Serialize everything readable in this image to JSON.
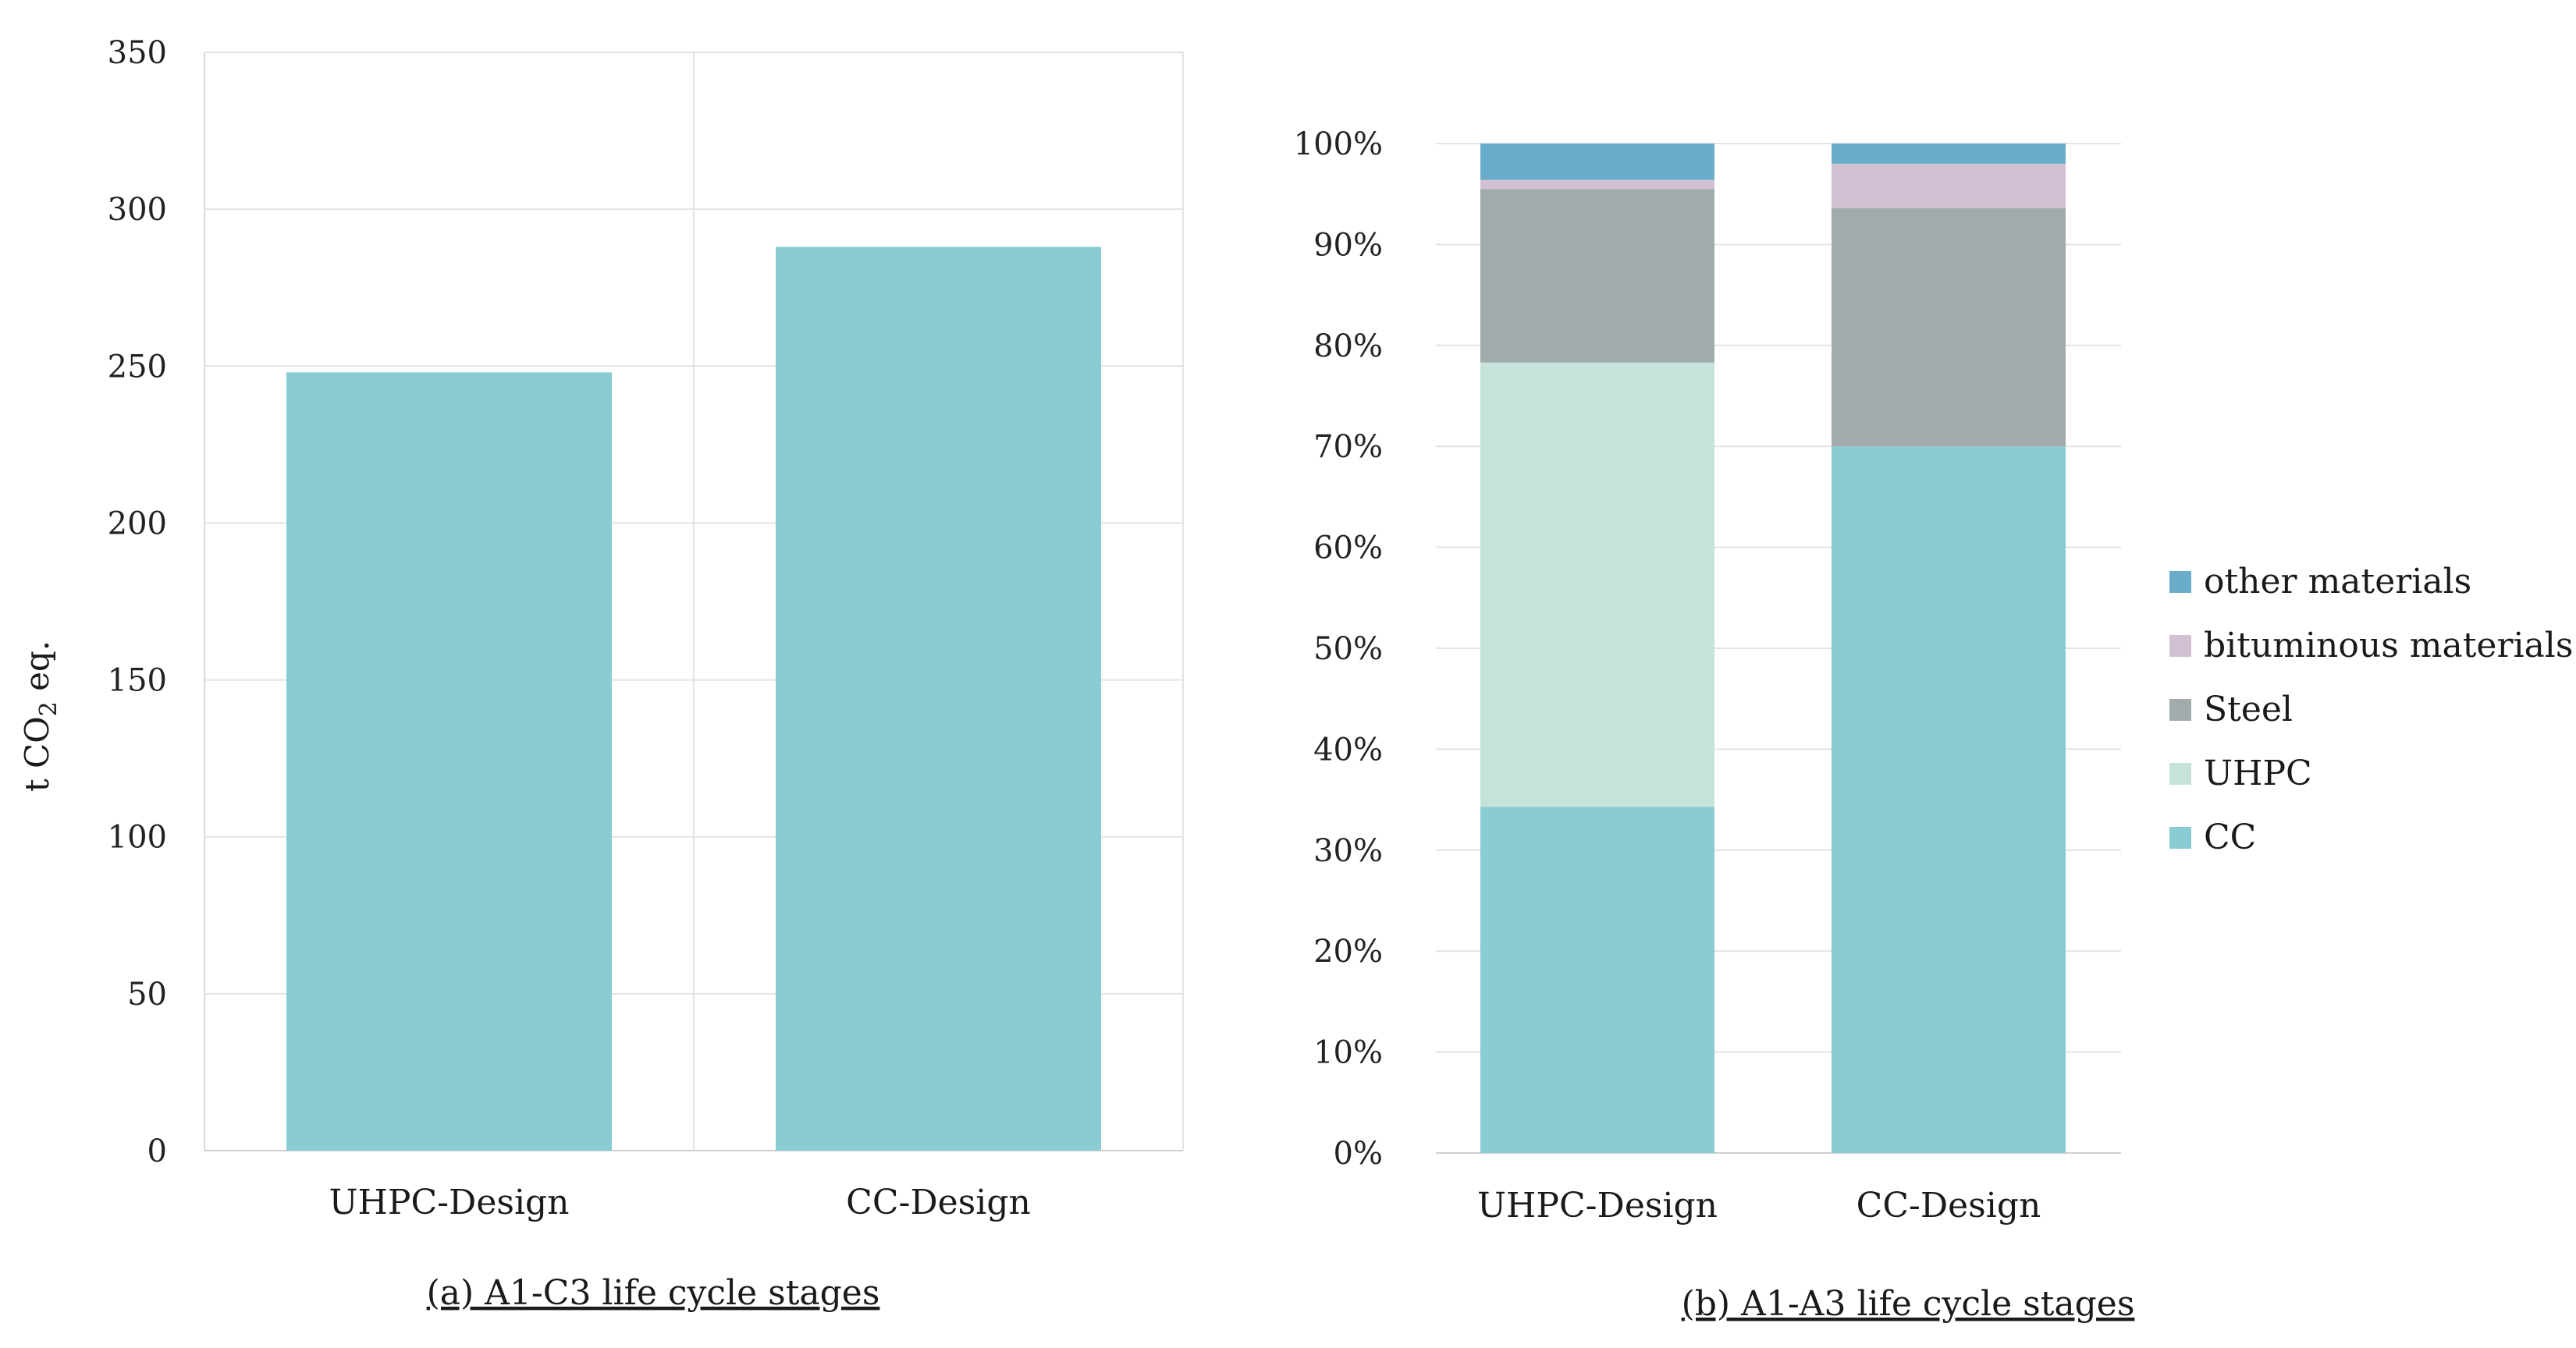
{
  "chart_data": [
    {
      "type": "bar",
      "caption": "(a) A1-C3 life cycle stages",
      "ylabel": {
        "prefix": "t CO",
        "subscript": "2",
        "suffix": " eq."
      },
      "categories": [
        "UHPC-Design",
        "CC-Design"
      ],
      "values": [
        248,
        288
      ],
      "ylim": [
        0,
        350
      ],
      "yticks": [
        "0",
        "50",
        "100",
        "150",
        "200",
        "250",
        "300",
        "350"
      ],
      "ytick_values": [
        0,
        50,
        100,
        150,
        200,
        250,
        300,
        350
      ],
      "grid": true,
      "color": "#8ACCD3"
    },
    {
      "type": "bar",
      "stacked": true,
      "caption": "(b) A1-A3 life cycle stages",
      "categories": [
        "UHPC-Design",
        "CC-Design"
      ],
      "ylim": [
        0,
        100
      ],
      "yticks": [
        "0%",
        "10%",
        "20%",
        "30%",
        "40%",
        "50%",
        "60%",
        "70%",
        "80%",
        "90%",
        "100%"
      ],
      "ytick_values": [
        0,
        10,
        20,
        30,
        40,
        50,
        60,
        70,
        80,
        90,
        100
      ],
      "grid": true,
      "legend_position": "right",
      "series": [
        {
          "name": "CC",
          "color": "#8ACCD3",
          "values": [
            34.3,
            70.0
          ]
        },
        {
          "name": "UHPC",
          "color": "#C5E3DA",
          "values": [
            44.0,
            0
          ]
        },
        {
          "name": "Steel",
          "color": "#A1ABAB",
          "values": [
            17.2,
            23.6
          ]
        },
        {
          "name": "bituminous materials",
          "color": "#D2C1D2",
          "values": [
            0.9,
            4.4
          ]
        },
        {
          "name": "other materials",
          "color": "#6AADCA",
          "values": [
            3.6,
            2.0
          ]
        }
      ]
    }
  ]
}
